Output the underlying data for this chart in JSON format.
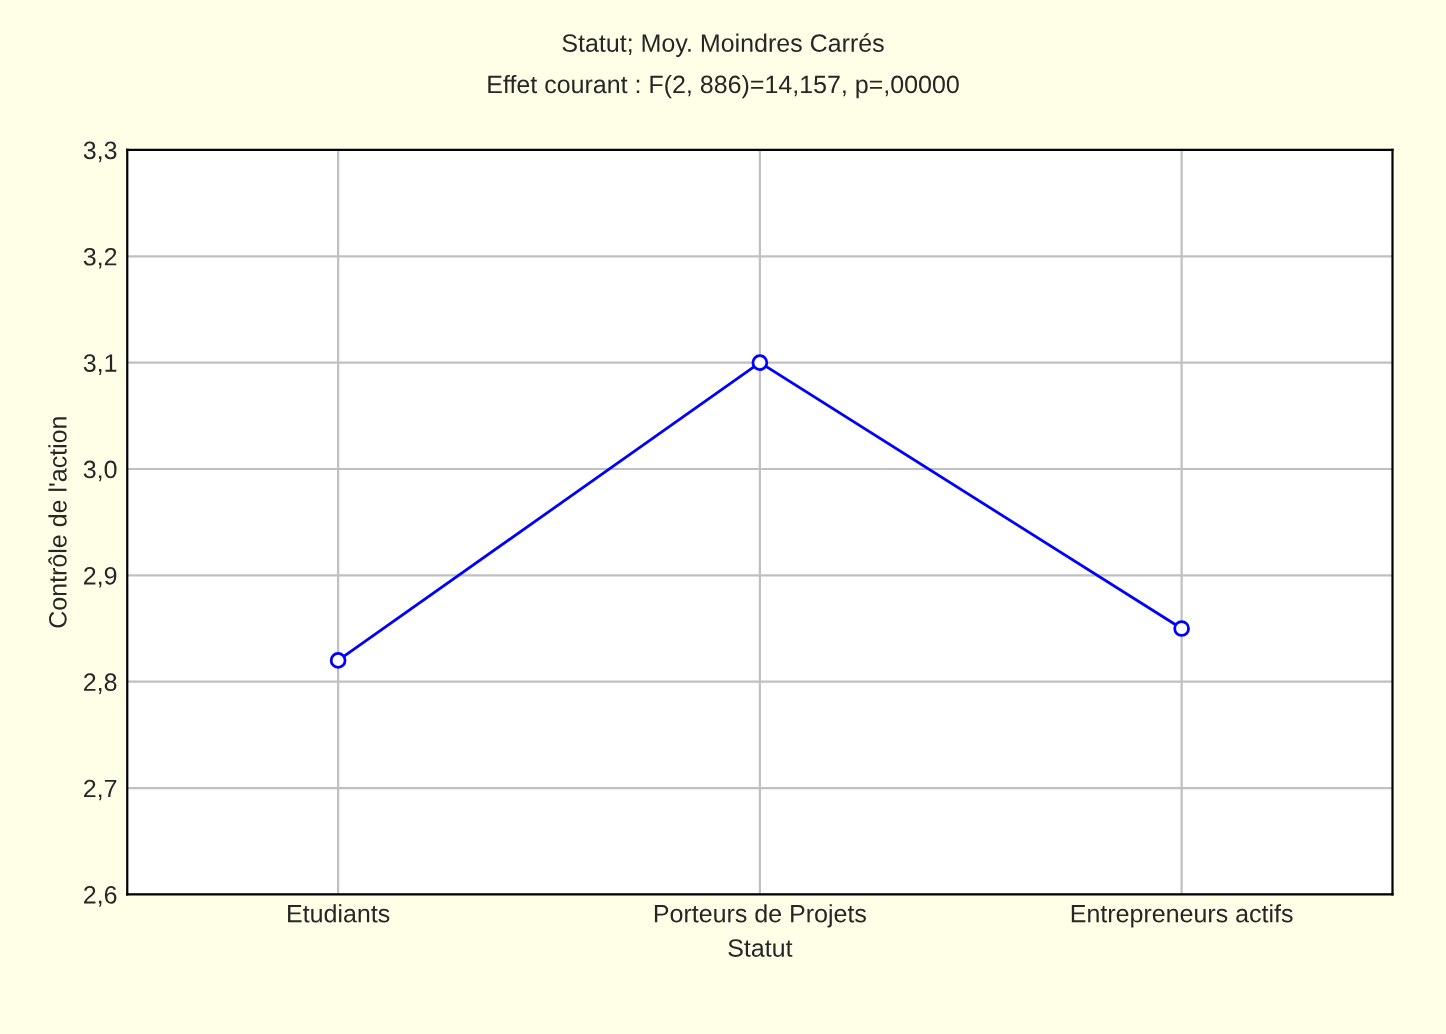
{
  "chart_data": {
    "type": "line",
    "title": "Statut; Moy. Moindres Carrés",
    "subtitle": "Effet courant : F(2, 886)=14,157, p=,00000",
    "xlabel": "Statut",
    "ylabel": "Contrôle de l'action",
    "categories": [
      "Etudiants",
      "Porteurs de Projets",
      "Entrepreneurs actifs"
    ],
    "series": [
      {
        "color": "#0000ff",
        "values": [
          2.82,
          3.1,
          2.85
        ]
      }
    ],
    "ylim": [
      2.6,
      3.3
    ],
    "yticks": [
      {
        "value": 2.6,
        "label": "2,6"
      },
      {
        "value": 2.7,
        "label": "2,7"
      },
      {
        "value": 2.8,
        "label": "2,8"
      },
      {
        "value": 2.9,
        "label": "2,9"
      },
      {
        "value": 3.0,
        "label": "3,0"
      },
      {
        "value": 3.1,
        "label": "3,1"
      },
      {
        "value": 3.2,
        "label": "3,2"
      },
      {
        "value": 3.3,
        "label": "3,3"
      }
    ],
    "grid": true,
    "marker": "circle",
    "line_style": "solid",
    "legend": false
  }
}
